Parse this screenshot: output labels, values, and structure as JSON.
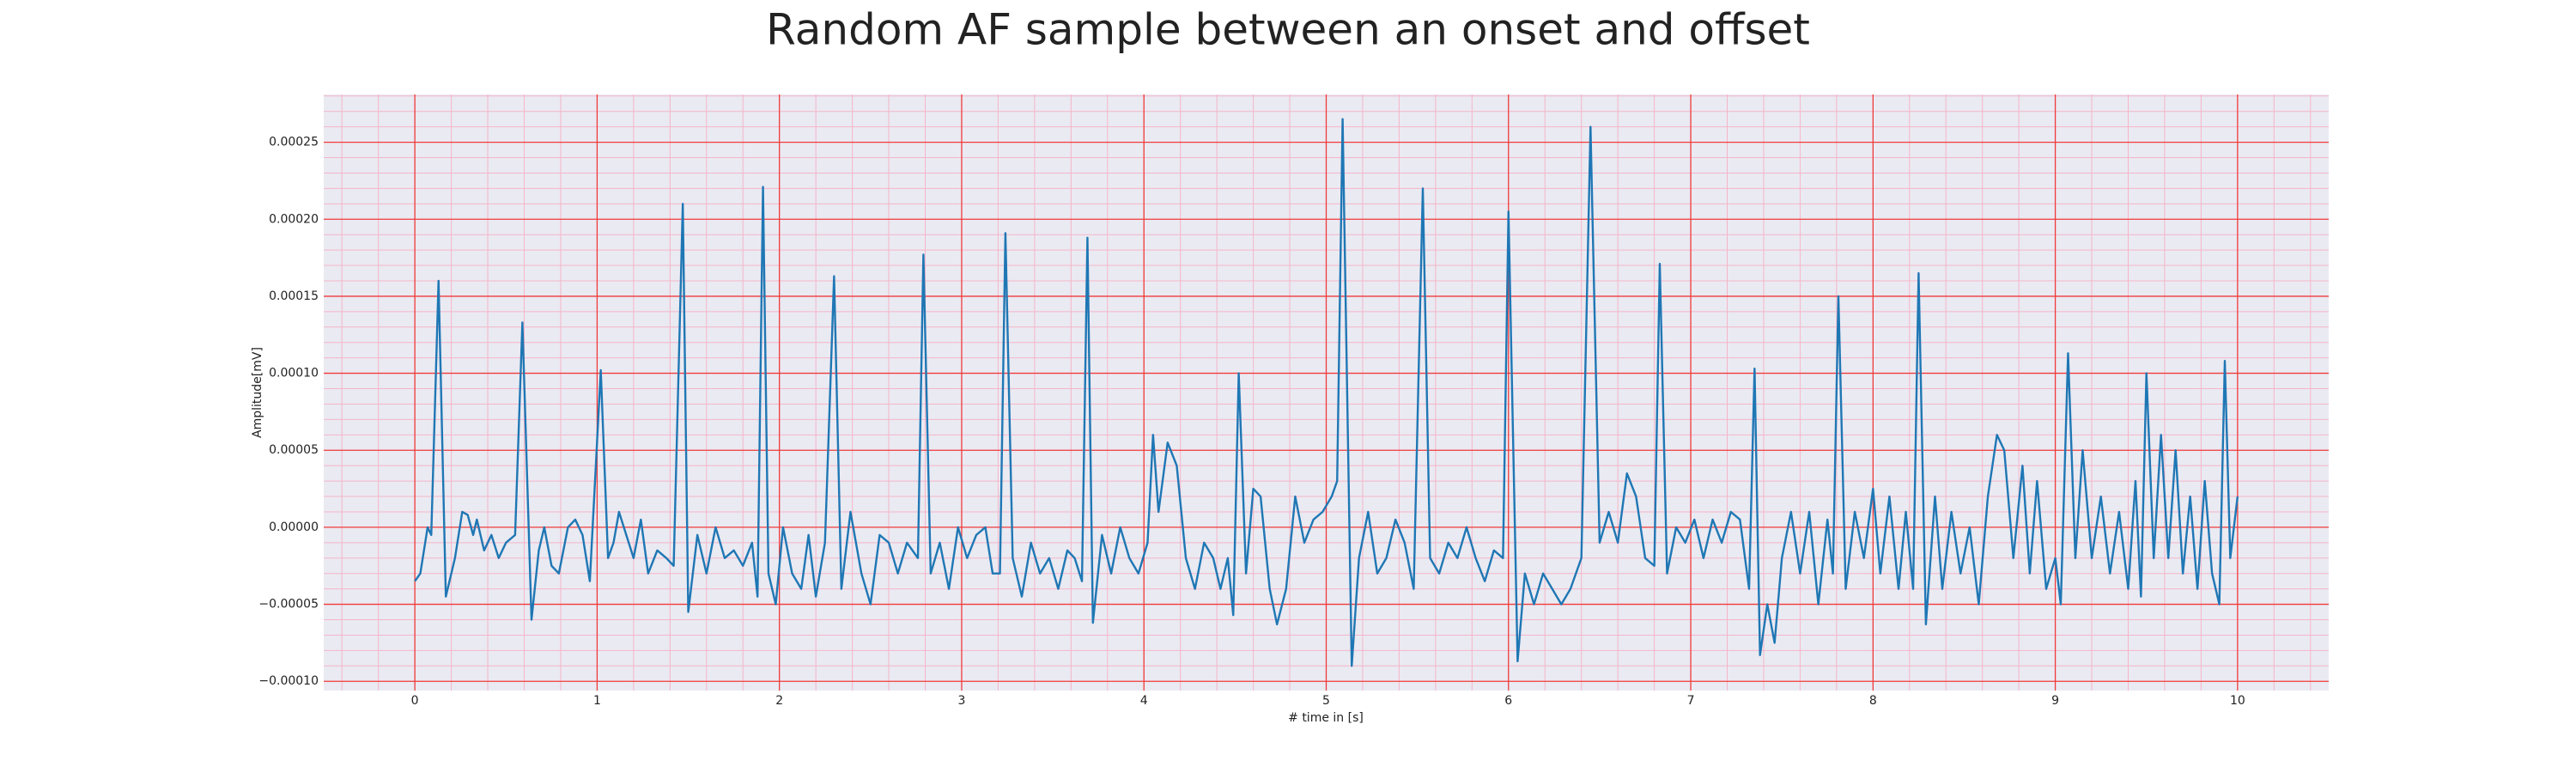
{
  "chart_data": {
    "type": "line",
    "title": "Random AF sample between an onset and offset",
    "x_label": "# time in [s]",
    "y_label": "Amplitude[mV]",
    "xlim": [
      -0.5,
      10.5
    ],
    "ylim": [
      -0.000106,
      0.000281
    ],
    "xticks": [
      0,
      1,
      2,
      3,
      4,
      5,
      6,
      7,
      8,
      9,
      10
    ],
    "yticks": [
      {
        "value": -0.0001,
        "label": "−0.00010"
      },
      {
        "value": -5e-05,
        "label": "−0.00005"
      },
      {
        "value": 0,
        "label": "0.00000"
      },
      {
        "value": 5e-05,
        "label": "0.00005"
      },
      {
        "value": 0.0001,
        "label": "0.00010"
      },
      {
        "value": 0.00015,
        "label": "0.00015"
      },
      {
        "value": 0.0002,
        "label": "0.00020"
      },
      {
        "value": 0.00025,
        "label": "0.00025"
      }
    ],
    "grid": true,
    "grid_color": "#f03a3a",
    "minor_grid_color": "#f5b5c8",
    "minor_divisions": 5,
    "background": "#eaeaf2",
    "x": [
      0,
      0.03,
      0.07,
      0.09,
      0.13,
      0.17,
      0.22,
      0.26,
      0.29,
      0.32,
      0.34,
      0.38,
      0.42,
      0.46,
      0.5,
      0.55,
      0.59,
      0.64,
      0.68,
      0.71,
      0.75,
      0.79,
      0.84,
      0.88,
      0.92,
      0.96,
      1.02,
      1.06,
      1.09,
      1.12,
      1.16,
      1.2,
      1.24,
      1.28,
      1.33,
      1.38,
      1.42,
      1.47,
      1.5,
      1.55,
      1.6,
      1.65,
      1.7,
      1.75,
      1.8,
      1.85,
      1.88,
      1.91,
      1.94,
      1.98,
      2.02,
      2.07,
      2.12,
      2.16,
      2.2,
      2.25,
      2.3,
      2.34,
      2.39,
      2.45,
      2.5,
      2.55,
      2.6,
      2.65,
      2.7,
      2.76,
      2.79,
      2.83,
      2.88,
      2.93,
      2.98,
      3.03,
      3.08,
      3.13,
      3.17,
      3.21,
      3.24,
      3.28,
      3.33,
      3.38,
      3.43,
      3.48,
      3.53,
      3.58,
      3.62,
      3.66,
      3.69,
      3.72,
      3.77,
      3.82,
      3.87,
      3.92,
      3.97,
      4.02,
      4.05,
      4.08,
      4.13,
      4.18,
      4.23,
      4.28,
      4.33,
      4.38,
      4.42,
      4.46,
      4.49,
      4.52,
      4.56,
      4.6,
      4.64,
      4.69,
      4.73,
      4.78,
      4.83,
      4.88,
      4.93,
      4.98,
      5.03,
      5.06,
      5.09,
      5.14,
      5.18,
      5.23,
      5.28,
      5.33,
      5.38,
      5.43,
      5.48,
      5.53,
      5.57,
      5.62,
      5.67,
      5.72,
      5.77,
      5.82,
      5.87,
      5.92,
      5.97,
      6.0,
      6.05,
      6.09,
      6.14,
      6.19,
      6.24,
      6.29,
      6.34,
      6.4,
      6.45,
      6.5,
      6.55,
      6.6,
      6.65,
      6.7,
      6.75,
      6.8,
      6.83,
      6.87,
      6.92,
      6.97,
      7.02,
      7.07,
      7.12,
      7.17,
      7.22,
      7.27,
      7.32,
      7.35,
      7.38,
      7.42,
      7.46,
      7.5,
      7.55,
      7.6,
      7.65,
      7.7,
      7.75,
      7.78,
      7.81,
      7.85,
      7.9,
      7.95,
      8.0,
      8.04,
      8.09,
      8.14,
      8.18,
      8.22,
      8.25,
      8.29,
      8.34,
      8.38,
      8.43,
      8.48,
      8.53,
      8.58,
      8.63,
      8.68,
      8.72,
      8.77,
      8.82,
      8.86,
      8.9,
      8.95,
      9.0,
      9.03,
      9.07,
      9.11,
      9.15,
      9.2,
      9.25,
      9.3,
      9.35,
      9.4,
      9.44,
      9.47,
      9.5,
      9.54,
      9.58,
      9.62,
      9.66,
      9.7,
      9.74,
      9.78,
      9.82,
      9.86,
      9.9,
      9.93,
      9.96,
      10.0
    ],
    "series": [
      {
        "name": "signal",
        "color": "#1f77b4",
        "values": [
          -3.5e-05,
          -3e-05,
          0,
          -5e-06,
          0.00016,
          -4.5e-05,
          -2e-05,
          1e-05,
          8e-06,
          -5e-06,
          5e-06,
          -1.5e-05,
          -5e-06,
          -2e-05,
          -1e-05,
          -5e-06,
          0.000133,
          -6e-05,
          -1.5e-05,
          0,
          -2.5e-05,
          -3e-05,
          0,
          5e-06,
          -5e-06,
          -3.5e-05,
          0.000102,
          -2e-05,
          -1e-05,
          1e-05,
          -5e-06,
          -2e-05,
          5e-06,
          -3e-05,
          -1.5e-05,
          -2e-05,
          -2.5e-05,
          0.00021,
          -5.5e-05,
          -5e-06,
          -3e-05,
          0,
          -2e-05,
          -1.5e-05,
          -2.5e-05,
          -1e-05,
          -4.5e-05,
          0.000221,
          -3e-05,
          -5e-05,
          0,
          -3e-05,
          -4e-05,
          -5e-06,
          -4.5e-05,
          -1e-05,
          0.000163,
          -4e-05,
          1e-05,
          -3e-05,
          -5e-05,
          -5e-06,
          -1e-05,
          -3e-05,
          -1e-05,
          -2e-05,
          0.000177,
          -3e-05,
          -1e-05,
          -4e-05,
          0,
          -2e-05,
          -5e-06,
          0,
          -3e-05,
          -3e-05,
          0.000191,
          -2e-05,
          -4.5e-05,
          -1e-05,
          -3e-05,
          -2e-05,
          -4e-05,
          -1.5e-05,
          -2e-05,
          -3.5e-05,
          0.000188,
          -6.2e-05,
          -5e-06,
          -3e-05,
          0,
          -2e-05,
          -3e-05,
          -1e-05,
          6e-05,
          1e-05,
          5.5e-05,
          4e-05,
          -2e-05,
          -4e-05,
          -1e-05,
          -2e-05,
          -4e-05,
          -2e-05,
          -5.7e-05,
          0.0001,
          -3e-05,
          2.5e-05,
          2e-05,
          -4e-05,
          -6.3e-05,
          -4e-05,
          2e-05,
          -1e-05,
          5e-06,
          1e-05,
          2e-05,
          3e-05,
          0.000265,
          -9e-05,
          -2e-05,
          1e-05,
          -3e-05,
          -2e-05,
          5e-06,
          -1e-05,
          -4e-05,
          0.00022,
          -2e-05,
          -3e-05,
          -1e-05,
          -2e-05,
          0,
          -2e-05,
          -3.5e-05,
          -1.5e-05,
          -2e-05,
          0.000205,
          -8.7e-05,
          -3e-05,
          -5e-05,
          -3e-05,
          -4e-05,
          -5e-05,
          -4e-05,
          -2e-05,
          0.00026,
          -1e-05,
          1e-05,
          -1e-05,
          3.5e-05,
          2e-05,
          -2e-05,
          -2.5e-05,
          0.000171,
          -3e-05,
          0,
          -1e-05,
          5e-06,
          -2e-05,
          5e-06,
          -1e-05,
          1e-05,
          5e-06,
          -4e-05,
          0.000103,
          -8.3e-05,
          -5e-05,
          -7.5e-05,
          -2e-05,
          1e-05,
          -3e-05,
          1e-05,
          -5e-05,
          5e-06,
          -3e-05,
          0.00015,
          -4e-05,
          1e-05,
          -2e-05,
          2.5e-05,
          -3e-05,
          2e-05,
          -4e-05,
          1e-05,
          -4e-05,
          0.000165,
          -6.3e-05,
          2e-05,
          -4e-05,
          1e-05,
          -3e-05,
          0,
          -5e-05,
          2e-05,
          6e-05,
          5e-05,
          -2e-05,
          4e-05,
          -3e-05,
          3e-05,
          -4e-05,
          -2e-05,
          -5e-05,
          0.000113,
          -2e-05,
          5e-05,
          -2e-05,
          2e-05,
          -3e-05,
          1e-05,
          -4e-05,
          3e-05,
          -4.5e-05,
          0.0001,
          -2e-05,
          6e-05,
          -2e-05,
          5e-05,
          -3e-05,
          2e-05,
          -4e-05,
          3e-05,
          -3e-05,
          -5e-05,
          0.000108,
          -2e-05,
          2e-05
        ]
      }
    ]
  }
}
